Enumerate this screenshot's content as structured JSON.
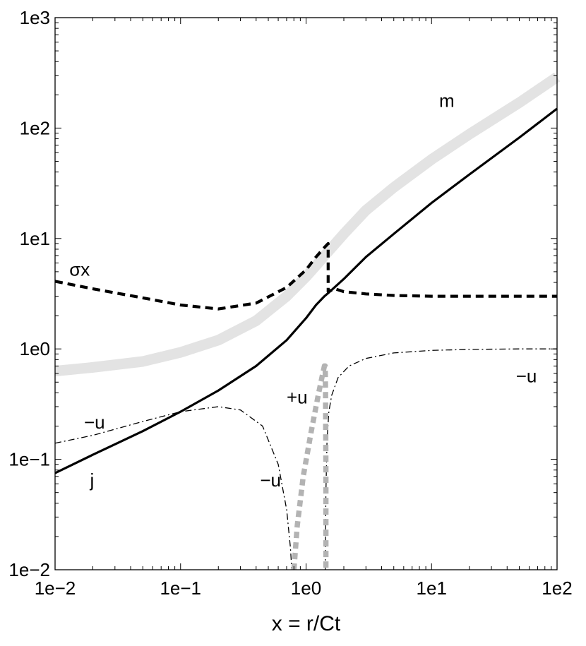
{
  "chart_data": {
    "type": "line",
    "title": "",
    "xlabel": "x = r/Ct",
    "ylabel": "",
    "xscale": "log",
    "yscale": "log",
    "xlim": [
      0.01,
      100
    ],
    "ylim": [
      0.01,
      1000
    ],
    "grid": false,
    "xticks": [
      "1e−2",
      "1e−1",
      "1e0",
      "1e1",
      "1e2"
    ],
    "yticks": [
      "1e−2",
      "1e−1",
      "1e0",
      "1e1",
      "1e2",
      "1e3"
    ],
    "series": [
      {
        "name": "m",
        "style": "thick-light-gray-solid",
        "color": "#e3e3e3",
        "x": [
          0.01,
          0.02,
          0.05,
          0.1,
          0.2,
          0.4,
          0.7,
          1.0,
          1.3,
          1.5,
          2,
          3,
          5,
          10,
          20,
          50,
          100
        ],
        "y": [
          0.63,
          0.68,
          0.77,
          0.93,
          1.2,
          1.8,
          3.0,
          4.5,
          6.3,
          7.6,
          11,
          18,
          29,
          52,
          88,
          170,
          290
        ]
      },
      {
        "name": "j",
        "style": "black-solid",
        "color": "#000000",
        "x": [
          0.01,
          0.02,
          0.05,
          0.1,
          0.2,
          0.4,
          0.7,
          1.0,
          1.2,
          1.4,
          1.5,
          2,
          3,
          5,
          10,
          20,
          50,
          100
        ],
        "y": [
          0.075,
          0.11,
          0.18,
          0.27,
          0.42,
          0.7,
          1.2,
          1.9,
          2.5,
          3.0,
          3.2,
          4.3,
          6.8,
          11,
          21,
          38,
          82,
          150
        ]
      },
      {
        "name": "σx",
        "style": "black-dashed",
        "color": "#000000",
        "x": [
          0.01,
          0.02,
          0.05,
          0.1,
          0.2,
          0.4,
          0.7,
          1.0,
          1.2,
          1.4,
          1.5,
          1.5,
          1.7,
          2,
          3,
          5,
          10,
          20,
          50,
          100
        ],
        "y": [
          4.1,
          3.5,
          2.9,
          2.5,
          2.3,
          2.6,
          3.6,
          5.2,
          6.8,
          8.3,
          9.0,
          3.3,
          3.5,
          3.3,
          3.15,
          3.05,
          3.0,
          3.0,
          3.0,
          3.0
        ]
      },
      {
        "name": "−u",
        "style": "black-dash-dot",
        "color": "#000000",
        "x": [
          0.01,
          0.02,
          0.05,
          0.1,
          0.2,
          0.3,
          0.45,
          0.6,
          0.7,
          0.75,
          0.77
        ],
        "y": [
          0.14,
          0.165,
          0.22,
          0.27,
          0.3,
          0.28,
          0.2,
          0.09,
          0.035,
          0.016,
          0.01
        ]
      },
      {
        "name": "−u",
        "style": "black-dash-dot",
        "color": "#000000",
        "x": [
          1.42,
          1.44,
          1.47,
          1.52,
          1.6,
          1.8,
          2.2,
          3,
          5,
          10,
          20,
          50,
          100
        ],
        "y": [
          0.01,
          0.05,
          0.15,
          0.27,
          0.38,
          0.55,
          0.7,
          0.82,
          0.92,
          0.97,
          0.99,
          1.0,
          1.0
        ]
      },
      {
        "name": "+u",
        "style": "gray-thick-dotted",
        "color": "#b3b3b3",
        "x": [
          0.8,
          0.85,
          0.95,
          1.1,
          1.25,
          1.35,
          1.4,
          1.42,
          1.43,
          1.44,
          1.44
        ],
        "y": [
          0.01,
          0.025,
          0.07,
          0.18,
          0.38,
          0.58,
          0.7,
          0.7,
          0.4,
          0.08,
          0.01
        ]
      }
    ],
    "annotations": [
      {
        "text": "m",
        "x": 11.5,
        "y": 155
      },
      {
        "text": "σx",
        "x": 0.013,
        "y": 4.6
      },
      {
        "text": "−u",
        "x": 47,
        "y": 0.5
      },
      {
        "text": "+u",
        "x": 0.7,
        "y": 0.32
      },
      {
        "text": "−u",
        "x": 0.017,
        "y": 0.19
      },
      {
        "text": "−u",
        "x": 0.43,
        "y": 0.057
      },
      {
        "text": "j",
        "x": 0.019,
        "y": 0.057
      }
    ]
  }
}
